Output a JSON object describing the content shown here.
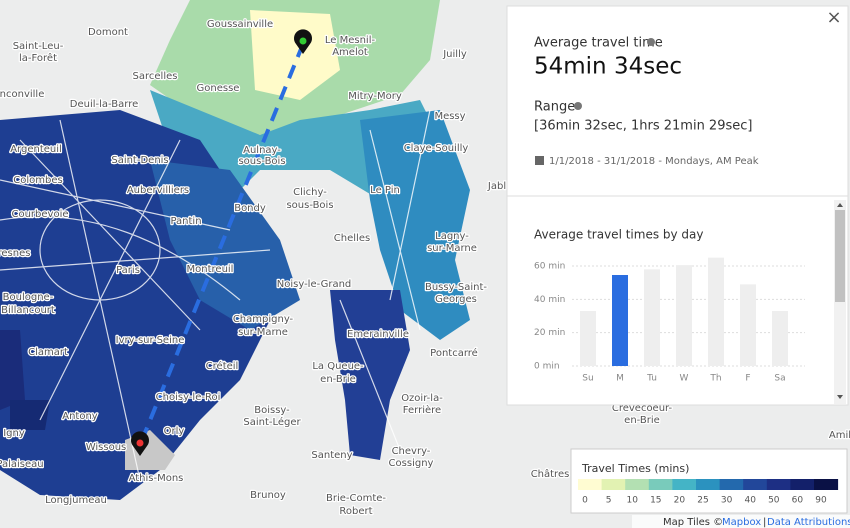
{
  "map": {
    "labels": [
      "Goussainville",
      "Domont",
      "Saint-Leu-",
      "la-Forêt",
      "Le Mesnil-",
      "Amelot",
      "Juilly",
      "Sarcelles",
      "Gonesse",
      "Mitry-Mory",
      "nconville",
      "Deuil-la-Barre",
      "Messy",
      "Argenteuil",
      "Saint-Denis",
      "Aulnay-",
      "sous-Bois",
      "Claye-Souilly",
      "Colombes",
      "Aubervilliers",
      "Le Pin",
      "Jabl",
      "Courbevoie",
      "Pantin",
      "Bondy",
      "Clichy-",
      "sous-Bois",
      "Chelles",
      "Lagny-",
      "sur-Marne",
      "resnes",
      "Paris",
      "Montreuil",
      "Noisy-le-Grand",
      "Bussy-Saint-",
      "Georges",
      "Boulogne-",
      "Billancourt",
      "Champigny-",
      "sur-Marne",
      "Emerainville",
      "Clamart",
      "Ivry-sur-Seine",
      "Pontcarré",
      "Créteil",
      "La Queue-",
      "en-Brie",
      "Choisy-le-Roi",
      "Ozoir-la-",
      "Ferrière",
      "Antony",
      "Boissy-",
      "Saint-Léger",
      "Crèvecoeur-",
      "en-Brie",
      "Igny",
      "Orly",
      "Wissous",
      "Santeny",
      "Chevry-",
      "Cossigny",
      "Palaiseau",
      "Athis-Mons",
      "Châtres",
      "Brunoy",
      "Brie-Comte-",
      "Robert",
      "Longjumeau",
      "Amil"
    ],
    "attribution": {
      "prefix": "Map Tiles ©",
      "mapbox": "Mapbox",
      "separator": "|",
      "data": "Data Attributions"
    }
  },
  "panel": {
    "close": "×",
    "average_label": "Average travel time",
    "average_value": "54min 34sec",
    "range_label": "Range",
    "range_value": "[36min 32sec, 1hrs 21min 29sec]",
    "period": "1/1/2018 - 31/1/2018 - Mondays, AM Peak"
  },
  "chart_data": {
    "type": "bar",
    "title": "Average travel times by day",
    "categories": [
      "Su",
      "M",
      "Tu",
      "W",
      "Th",
      "F",
      "Sa"
    ],
    "values": [
      33,
      54.6,
      58,
      60.5,
      65,
      49,
      33
    ],
    "colors": [
      "#eeeeee",
      "#2a6de0",
      "#eeeeee",
      "#eeeeee",
      "#eeeeee",
      "#eeeeee",
      "#eeeeee"
    ],
    "ylim": [
      0,
      66
    ],
    "yticks": [
      {
        "value": 0,
        "label": "0 min"
      },
      {
        "value": 20,
        "label": "20 min"
      },
      {
        "value": 40,
        "label": "40 min"
      },
      {
        "value": 60,
        "label": "60 min"
      }
    ],
    "grid": true
  },
  "legend": {
    "title": "Travel Times (mins)",
    "stops": [
      0,
      5,
      10,
      15,
      20,
      25,
      30,
      40,
      50,
      60,
      90
    ],
    "colors": [
      "#fffcd2",
      "#e2f2b2",
      "#b3e0b2",
      "#79cbbb",
      "#44b4c6",
      "#2b92bf",
      "#2369ad",
      "#22479a",
      "#1d2f84",
      "#13206a",
      "#0a1145"
    ]
  }
}
